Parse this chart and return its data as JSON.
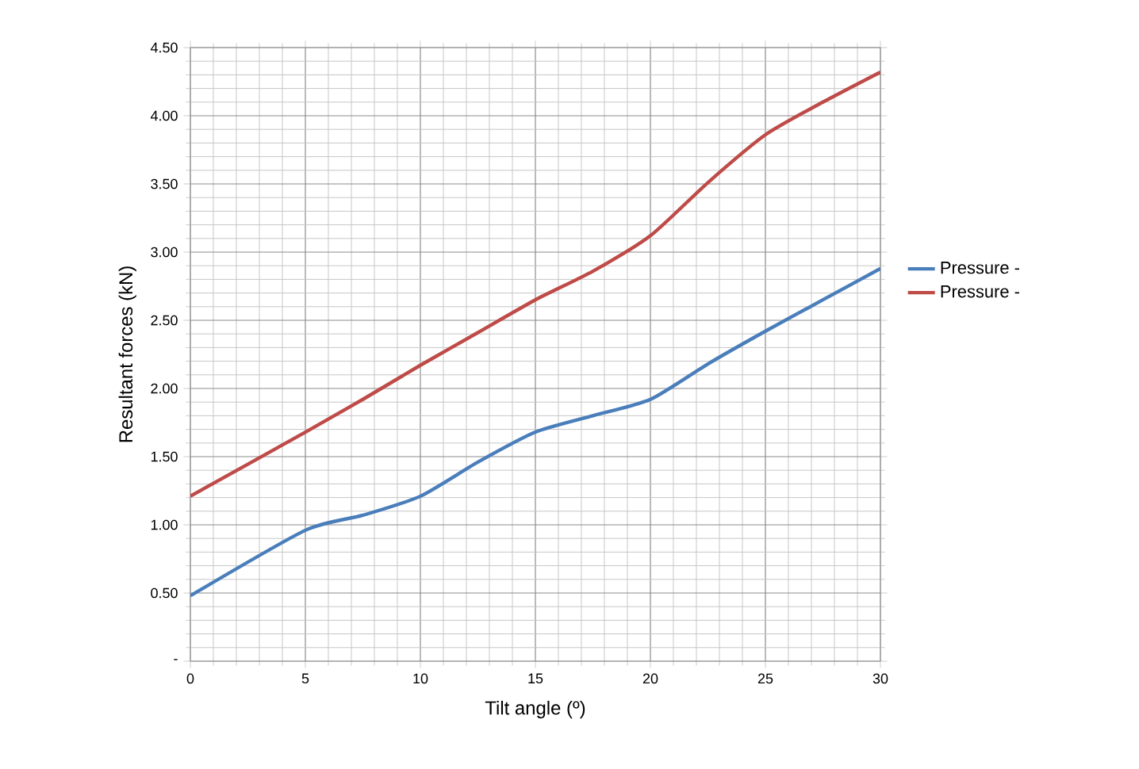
{
  "chart_data": {
    "type": "line",
    "xlabel": "Tilt angle (º)",
    "ylabel": "Resultant forces (kN)",
    "xlim": [
      0,
      30
    ],
    "xticks": [
      0,
      5,
      10,
      15,
      20,
      25,
      30
    ],
    "ylim": [
      0,
      4.5
    ],
    "yticks": [
      {
        "value": 0,
        "label": "-"
      },
      {
        "value": 0.5,
        "label": "0.50"
      },
      {
        "value": 1,
        "label": "1.00"
      },
      {
        "value": 1.5,
        "label": "1.50"
      },
      {
        "value": 2,
        "label": "2.00"
      },
      {
        "value": 2.5,
        "label": "2.50"
      },
      {
        "value": 3,
        "label": "3.00"
      },
      {
        "value": 3.5,
        "label": "3.50"
      },
      {
        "value": 4,
        "label": "4.00"
      },
      {
        "value": 4.5,
        "label": "4.50"
      }
    ],
    "grid": true,
    "legend": "right",
    "marker": "none",
    "line_style": "solid",
    "x": [
      0,
      5,
      7.5,
      10,
      12.5,
      15,
      17.5,
      20,
      22.5,
      25,
      27.5,
      30
    ],
    "series": [
      {
        "name": "Pressure -",
        "color": "#4a7ebb",
        "values": [
          0.48,
          0.96,
          1.07,
          1.21,
          1.46,
          1.68,
          1.8,
          1.92,
          2.18,
          2.42,
          2.65,
          2.88
        ]
      },
      {
        "name": "Pressure -",
        "color": "#be4b48",
        "values": [
          1.21,
          1.68,
          1.92,
          2.17,
          2.41,
          2.65,
          2.86,
          3.12,
          3.51,
          3.86,
          4.1,
          4.32
        ]
      }
    ]
  }
}
